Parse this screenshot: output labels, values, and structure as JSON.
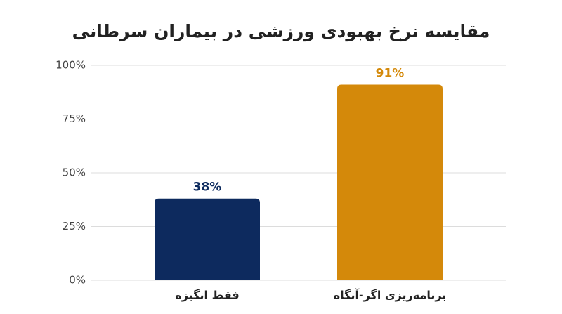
{
  "chart_data": {
    "type": "bar",
    "title": "مقایسه نرخ بهبودی ورزشی در بیماران سرطانی",
    "categories": [
      "فقط انگیزه",
      "برنامه‌ریزی اگر-آنگاه"
    ],
    "values": [
      38,
      91
    ],
    "value_labels": [
      "38%",
      "91%"
    ],
    "colors": [
      "#0d2a5e",
      "#d4890a"
    ],
    "ylim": [
      0,
      100
    ],
    "yticks": [
      {
        "value": 0,
        "label": "0%"
      },
      {
        "value": 25,
        "label": "25%"
      },
      {
        "value": 50,
        "label": "50%"
      },
      {
        "value": 75,
        "label": "75%"
      },
      {
        "value": 100,
        "label": "100%"
      }
    ],
    "grid": true
  }
}
